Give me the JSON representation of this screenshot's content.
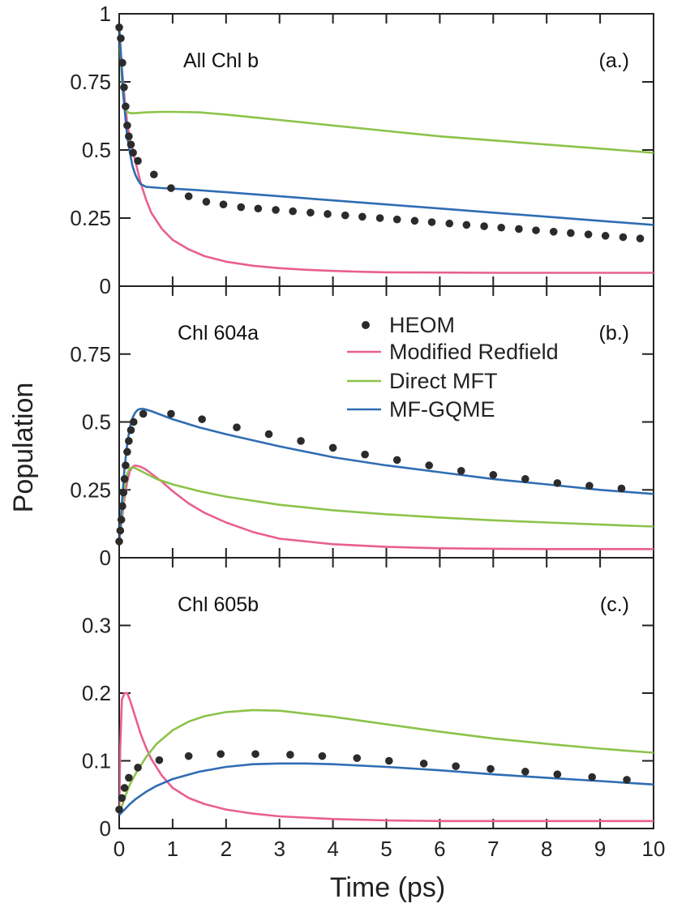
{
  "figure": {
    "ylabel": "Population",
    "xlabel": "Time (ps)"
  },
  "legend": [
    {
      "label": "HEOM",
      "key": "heom"
    },
    {
      "label": "Modified Redfield",
      "key": "redfield"
    },
    {
      "label": "Direct MFT",
      "key": "mft"
    },
    {
      "label": "MF-GQME",
      "key": "gqme"
    }
  ],
  "colors": {
    "heom": "#2b2b2b",
    "redfield": "#e8608e",
    "mft": "#8cc34a",
    "gqme": "#2f6db3",
    "axis": "#222222"
  },
  "chart_data": [
    {
      "type": "line",
      "title": "All Chl b",
      "panel_label": "(a.)",
      "xlabel": "Time (ps)",
      "ylabel": "Population",
      "xlim": [
        0,
        10
      ],
      "ylim": [
        0,
        1
      ],
      "yticks": [
        0,
        0.25,
        0.5,
        0.75,
        1
      ],
      "ytick_labels": [
        "0",
        "0.25",
        "0.5",
        "0.75",
        "1"
      ],
      "series": [
        {
          "name": "HEOM",
          "key": "heom",
          "style": "markers",
          "x": [
            0,
            0.03,
            0.06,
            0.09,
            0.12,
            0.15,
            0.18,
            0.22,
            0.26,
            0.35,
            0.65,
            0.97,
            1.3,
            1.63,
            1.95,
            2.28,
            2.6,
            2.93,
            3.25,
            3.58,
            3.9,
            4.23,
            4.55,
            4.88,
            5.2,
            5.53,
            5.85,
            6.18,
            6.5,
            6.83,
            7.15,
            7.48,
            7.8,
            8.13,
            8.45,
            8.78,
            9.1,
            9.43,
            9.75
          ],
          "y": [
            0.95,
            0.91,
            0.82,
            0.73,
            0.66,
            0.59,
            0.55,
            0.52,
            0.49,
            0.46,
            0.41,
            0.36,
            0.33,
            0.31,
            0.3,
            0.29,
            0.285,
            0.28,
            0.275,
            0.27,
            0.265,
            0.26,
            0.255,
            0.25,
            0.245,
            0.24,
            0.235,
            0.23,
            0.225,
            0.22,
            0.215,
            0.21,
            0.205,
            0.2,
            0.195,
            0.19,
            0.185,
            0.18,
            0.175
          ]
        },
        {
          "name": "Modified Redfield",
          "key": "redfield",
          "style": "line",
          "x": [
            0,
            0.05,
            0.1,
            0.15,
            0.2,
            0.3,
            0.4,
            0.5,
            0.6,
            0.8,
            1,
            1.3,
            1.6,
            2,
            2.5,
            3,
            3.5,
            4,
            4.5,
            5,
            6,
            7,
            8,
            9,
            10
          ],
          "y": [
            0.95,
            0.8,
            0.69,
            0.6,
            0.54,
            0.46,
            0.38,
            0.32,
            0.27,
            0.21,
            0.17,
            0.135,
            0.11,
            0.09,
            0.075,
            0.066,
            0.06,
            0.056,
            0.053,
            0.051,
            0.05,
            0.049,
            0.049,
            0.049,
            0.049
          ]
        },
        {
          "name": "Direct MFT",
          "key": "mft",
          "style": "line",
          "x": [
            0,
            0.03,
            0.06,
            0.1,
            0.15,
            0.2,
            0.3,
            0.5,
            0.8,
            1,
            1.5,
            2,
            2.5,
            3,
            4,
            5,
            6,
            7,
            8,
            9,
            10
          ],
          "y": [
            0.95,
            0.83,
            0.72,
            0.66,
            0.64,
            0.635,
            0.635,
            0.638,
            0.64,
            0.64,
            0.638,
            0.63,
            0.62,
            0.61,
            0.59,
            0.57,
            0.55,
            0.535,
            0.52,
            0.505,
            0.49
          ]
        },
        {
          "name": "MF-GQME",
          "key": "gqme",
          "style": "line",
          "x": [
            0,
            0.03,
            0.06,
            0.09,
            0.12,
            0.15,
            0.2,
            0.25,
            0.3,
            0.35,
            0.4,
            0.5,
            0.6,
            0.8,
            1,
            1.5,
            2,
            3,
            4,
            5,
            6,
            7,
            8,
            9,
            10
          ],
          "y": [
            0.95,
            0.86,
            0.76,
            0.68,
            0.61,
            0.55,
            0.49,
            0.44,
            0.41,
            0.39,
            0.375,
            0.365,
            0.363,
            0.36,
            0.358,
            0.352,
            0.345,
            0.33,
            0.315,
            0.3,
            0.285,
            0.27,
            0.255,
            0.24,
            0.225
          ]
        }
      ]
    },
    {
      "type": "line",
      "title": "Chl 604a",
      "panel_label": "(b.)",
      "xlabel": "Time (ps)",
      "ylabel": "Population",
      "xlim": [
        0,
        10
      ],
      "ylim": [
        0,
        1
      ],
      "yticks": [
        0,
        0.25,
        0.5,
        0.75
      ],
      "ytick_labels": [
        "0",
        "0.25",
        "0.5",
        "0.75"
      ],
      "series": [
        {
          "name": "HEOM",
          "key": "heom",
          "style": "markers",
          "x": [
            0,
            0.02,
            0.04,
            0.06,
            0.08,
            0.1,
            0.12,
            0.15,
            0.18,
            0.22,
            0.27,
            0.45,
            0.97,
            1.55,
            2.2,
            2.8,
            3.4,
            4,
            4.6,
            5.2,
            5.8,
            6.4,
            7,
            7.6,
            8.2,
            8.8,
            9.4
          ],
          "y": [
            0.06,
            0.1,
            0.14,
            0.19,
            0.24,
            0.29,
            0.34,
            0.39,
            0.43,
            0.47,
            0.5,
            0.53,
            0.53,
            0.51,
            0.48,
            0.455,
            0.43,
            0.405,
            0.38,
            0.36,
            0.34,
            0.32,
            0.305,
            0.29,
            0.275,
            0.265,
            0.255
          ]
        },
        {
          "name": "Modified Redfield",
          "key": "redfield",
          "style": "line",
          "x": [
            0,
            0.05,
            0.1,
            0.15,
            0.2,
            0.25,
            0.3,
            0.4,
            0.5,
            0.6,
            0.7,
            0.8,
            1,
            1.3,
            1.6,
            2,
            2.5,
            3,
            4,
            5,
            6,
            7,
            8,
            9,
            10
          ],
          "y": [
            0.06,
            0.14,
            0.22,
            0.28,
            0.32,
            0.335,
            0.34,
            0.335,
            0.325,
            0.31,
            0.295,
            0.28,
            0.245,
            0.2,
            0.165,
            0.13,
            0.095,
            0.07,
            0.05,
            0.04,
            0.035,
            0.033,
            0.032,
            0.032,
            0.032
          ]
        },
        {
          "name": "Direct MFT",
          "key": "mft",
          "style": "line",
          "x": [
            0,
            0.05,
            0.1,
            0.15,
            0.2,
            0.25,
            0.3,
            0.4,
            0.5,
            0.7,
            1,
            1.5,
            2,
            3,
            4,
            5,
            6,
            7,
            8,
            9,
            10
          ],
          "y": [
            0.06,
            0.16,
            0.25,
            0.31,
            0.33,
            0.332,
            0.33,
            0.32,
            0.31,
            0.29,
            0.27,
            0.245,
            0.225,
            0.195,
            0.175,
            0.16,
            0.148,
            0.138,
            0.13,
            0.122,
            0.115
          ]
        },
        {
          "name": "MF-GQME",
          "key": "gqme",
          "style": "line",
          "x": [
            0,
            0.05,
            0.1,
            0.15,
            0.2,
            0.25,
            0.3,
            0.35,
            0.4,
            0.45,
            0.5,
            0.6,
            0.8,
            1,
            1.5,
            2,
            3,
            4,
            5,
            6,
            7,
            8,
            9,
            10
          ],
          "y": [
            0.06,
            0.2,
            0.33,
            0.42,
            0.48,
            0.515,
            0.535,
            0.545,
            0.548,
            0.548,
            0.546,
            0.54,
            0.525,
            0.51,
            0.48,
            0.455,
            0.41,
            0.37,
            0.34,
            0.315,
            0.29,
            0.27,
            0.25,
            0.235
          ]
        }
      ]
    },
    {
      "type": "line",
      "title": "Chl 605b",
      "panel_label": "(c.)",
      "xlabel": "Time (ps)",
      "ylabel": "Population",
      "xlim": [
        0,
        10
      ],
      "ylim": [
        0,
        0.4
      ],
      "yticks": [
        0,
        0.1,
        0.2,
        0.3
      ],
      "ytick_labels": [
        "0",
        "0.1",
        "0.2",
        "0.3"
      ],
      "xticks": [
        0,
        1,
        2,
        3,
        4,
        5,
        6,
        7,
        8,
        9,
        10
      ],
      "xtick_labels": [
        "0",
        "1",
        "2",
        "3",
        "4",
        "5",
        "6",
        "7",
        "8",
        "9",
        "10"
      ],
      "series": [
        {
          "name": "HEOM",
          "key": "heom",
          "style": "markers",
          "x": [
            0,
            0.05,
            0.1,
            0.18,
            0.35,
            0.75,
            1.3,
            1.9,
            2.55,
            3.2,
            3.8,
            4.45,
            5.05,
            5.7,
            6.3,
            6.95,
            7.6,
            8.2,
            8.85,
            9.5
          ],
          "y": [
            0.028,
            0.045,
            0.06,
            0.075,
            0.09,
            0.101,
            0.107,
            0.11,
            0.11,
            0.109,
            0.107,
            0.104,
            0.1,
            0.096,
            0.092,
            0.088,
            0.084,
            0.08,
            0.076,
            0.072
          ]
        },
        {
          "name": "Modified Redfield",
          "key": "redfield",
          "style": "line",
          "x": [
            0,
            0.02,
            0.05,
            0.1,
            0.15,
            0.2,
            0.3,
            0.4,
            0.5,
            0.6,
            0.8,
            1,
            1.3,
            1.6,
            2,
            2.5,
            3,
            4,
            5,
            6,
            7,
            8,
            9,
            10
          ],
          "y": [
            0.02,
            0.12,
            0.19,
            0.2,
            0.2,
            0.19,
            0.165,
            0.14,
            0.12,
            0.103,
            0.078,
            0.06,
            0.045,
            0.036,
            0.028,
            0.022,
            0.018,
            0.014,
            0.012,
            0.011,
            0.011,
            0.011,
            0.011,
            0.011
          ]
        },
        {
          "name": "Direct MFT",
          "key": "mft",
          "style": "line",
          "x": [
            0,
            0.1,
            0.2,
            0.3,
            0.5,
            0.7,
            1,
            1.3,
            1.6,
            2,
            2.5,
            3,
            4,
            5,
            6,
            7,
            8,
            9,
            10
          ],
          "y": [
            0.02,
            0.045,
            0.065,
            0.08,
            0.105,
            0.125,
            0.145,
            0.158,
            0.166,
            0.172,
            0.175,
            0.174,
            0.165,
            0.154,
            0.143,
            0.133,
            0.125,
            0.118,
            0.112
          ]
        },
        {
          "name": "MF-GQME",
          "key": "gqme",
          "style": "line",
          "x": [
            0,
            0.1,
            0.2,
            0.3,
            0.5,
            0.7,
            1,
            1.5,
            2,
            2.5,
            3,
            3.5,
            4,
            5,
            6,
            7,
            8,
            9,
            10
          ],
          "y": [
            0.02,
            0.028,
            0.036,
            0.043,
            0.054,
            0.063,
            0.073,
            0.084,
            0.091,
            0.095,
            0.096,
            0.096,
            0.095,
            0.091,
            0.086,
            0.08,
            0.075,
            0.07,
            0.065
          ]
        }
      ]
    }
  ]
}
